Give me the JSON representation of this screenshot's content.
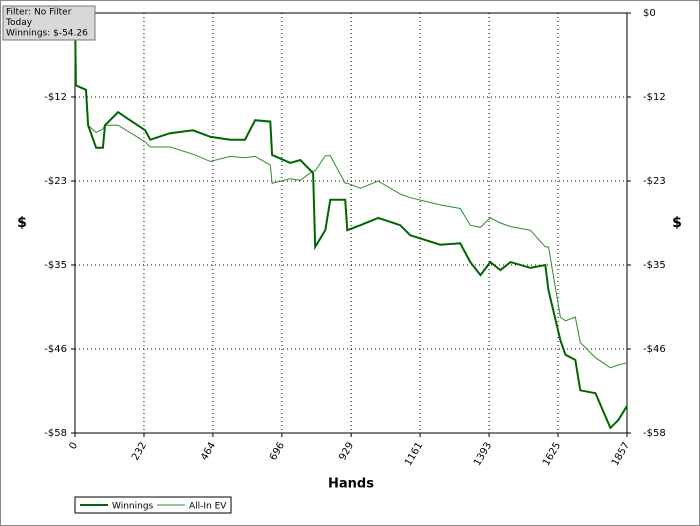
{
  "chart_data": {
    "type": "line",
    "info_box": [
      "Filter: No Filter",
      "Today",
      "Winnings: $-54.26"
    ],
    "x_label": "Hands",
    "y_label": "$",
    "y2_label": "$",
    "x": [
      0,
      3,
      37,
      44,
      71,
      94,
      101,
      145,
      236,
      253,
      320,
      397,
      455,
      522,
      572,
      606,
      657,
      663,
      724,
      758,
      801,
      808,
      842,
      859,
      909,
      916,
      960,
      1020,
      1094,
      1128,
      1229,
      1296,
      1330,
      1364,
      1397,
      1431,
      1465,
      1532,
      1582,
      1593,
      1633,
      1650,
      1683,
      1700,
      1751,
      1801,
      1828,
      1857
    ],
    "series": [
      {
        "name": "Winnings",
        "color": "#006400",
        "values": [
          0,
          -10,
          -10.6,
          -15.5,
          -18.6,
          -18.6,
          -15.5,
          -13.7,
          -16.2,
          -17.5,
          -16.6,
          -16.2,
          -17.1,
          -17.5,
          -17.5,
          -14.8,
          -15.0,
          -19.6,
          -20.7,
          -20.3,
          -22.1,
          -32.3,
          -30.0,
          -25.8,
          -25.8,
          -30.0,
          -29.3,
          -28.3,
          -29.3,
          -30.7,
          -32.0,
          -31.8,
          -34.4,
          -36.2,
          -34.4,
          -35.5,
          -34.4,
          -35.2,
          -34.8,
          -38.3,
          -45.2,
          -47.2,
          -47.9,
          -52.1,
          -52.5,
          -57.3,
          -56.2,
          -54.26
        ]
      },
      {
        "name": "All-In EV",
        "color": "#2e8b2e",
        "values": [
          0,
          -10,
          -10.6,
          -15.5,
          -16.5,
          -16,
          -15.5,
          -15.5,
          -17.8,
          -18.5,
          -18.5,
          -19.5,
          -20.5,
          -19.8,
          -20,
          -19.8,
          -21,
          -23.5,
          -22.9,
          -23.1,
          -21.8,
          -21.8,
          -19.7,
          -19.7,
          -23.5,
          -23.5,
          -24.2,
          -23.2,
          -25,
          -25.5,
          -26.5,
          -27,
          -29.3,
          -29.6,
          -28.3,
          -29,
          -29.5,
          -30,
          -32.3,
          -32.3,
          -42,
          -42.5,
          -42,
          -45.5,
          -47.6,
          -49,
          -48.6,
          -48.3
        ]
      }
    ],
    "xlim": [
      0,
      1857
    ],
    "xticks": [
      0,
      232,
      464,
      696,
      929,
      1161,
      1393,
      1625,
      1857
    ],
    "ylim": [
      -58,
      0
    ],
    "yticks": [
      {
        "value": 0,
        "label": "$0"
      },
      {
        "value": -11.6,
        "label": "-$12"
      },
      {
        "value": -23.2,
        "label": "-$23"
      },
      {
        "value": -34.8,
        "label": "-$35"
      },
      {
        "value": -46.4,
        "label": "-$46"
      },
      {
        "value": -58,
        "label": "-$58"
      }
    ],
    "grid": true
  }
}
